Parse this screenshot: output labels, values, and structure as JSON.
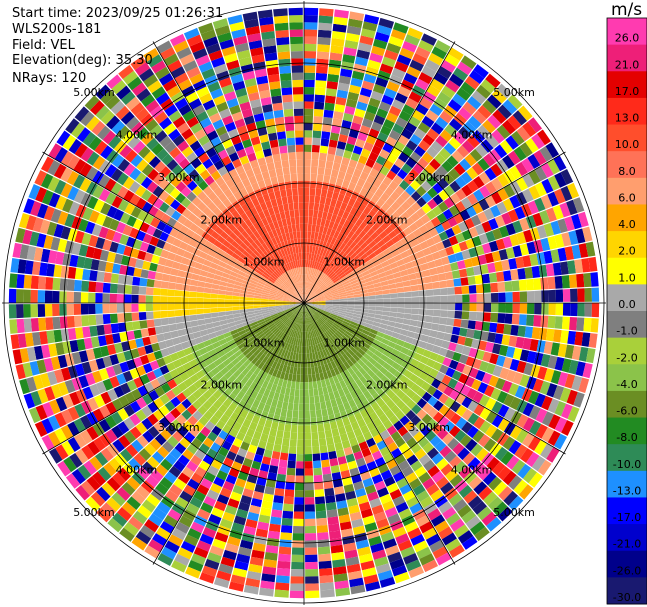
{
  "header": {
    "start_time": "Start time: 2023/09/25 01:26:31",
    "instrument": "WLS200s-181",
    "field": "Field: VEL",
    "elevation": "Elevation(deg): 35.30",
    "nrays": "NRays: 120"
  },
  "colorbar": {
    "unit": "m/s",
    "ticks": [
      "26.0",
      "21.0",
      "17.0",
      "13.0",
      "10.0",
      "8.0",
      "6.0",
      "4.0",
      "2.0",
      "1.0",
      "0.0",
      "-1.0",
      "-2.0",
      "-4.0",
      "-6.0",
      "-8.0",
      "-10.0",
      "-13.0",
      "-17.0",
      "-21.0",
      "-26.0",
      "-30.0"
    ],
    "colors": [
      "#ff3bb0",
      "#ee1f78",
      "#e40000",
      "#ff2a1a",
      "#ff4e2c",
      "#ff7257",
      "#ff9e6e",
      "#ffa500",
      "#ffd500",
      "#ffff00",
      "#a9a9a9",
      "#7f7f7f",
      "#a9d03a",
      "#8bc34a",
      "#6b8e23",
      "#228b22",
      "#2e8b57",
      "#1e90ff",
      "#0000ff",
      "#0000cd",
      "#00008b",
      "#191970"
    ]
  },
  "chart_data": {
    "type": "ppi",
    "field": "VEL",
    "units": "m/s",
    "nrays": 120,
    "elevation_deg": 35.3,
    "range_rings_km": [
      1.0,
      2.0,
      3.0,
      4.0,
      5.0
    ],
    "ring_labels": [
      "1.00km",
      "2.00km",
      "3.00km",
      "4.00km",
      "5.00km"
    ],
    "clim": [
      -30.0,
      26.0
    ],
    "regions": [
      {
        "name": "north inner",
        "value": 10.0
      },
      {
        "name": "north outer",
        "value": 6.0
      },
      {
        "name": "east-west band",
        "value": 2.0
      },
      {
        "name": "east near-zero",
        "value": 0.0
      },
      {
        "name": "south inner",
        "value": -6.0
      },
      {
        "name": "south middle",
        "value": -4.0
      },
      {
        "name": "south outer",
        "value": -2.0
      },
      {
        "name": "outer noise",
        "value": "random"
      }
    ]
  }
}
